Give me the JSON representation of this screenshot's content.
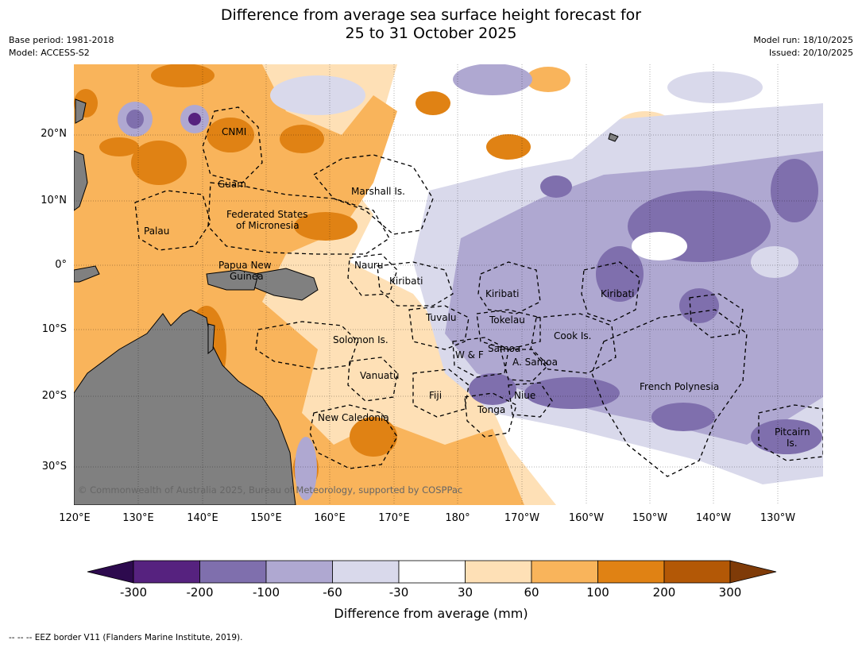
{
  "header": {
    "title_line1": "Difference from average sea surface height forecast for",
    "title_line2": "25 to 31 October 2025",
    "base_period": "Base period: 1981-2018",
    "model": "Model: ACCESS-S2",
    "model_run": "Model run: 18/10/2025",
    "issued": "Issued: 20/10/2025"
  },
  "map": {
    "extent": {
      "lon_min": 120,
      "lon_max": 237,
      "lat_min": -35,
      "lat_max": 30
    },
    "lat_ticks": [
      "20°N",
      "10°N",
      "0°",
      "10°S",
      "20°S",
      "30°S"
    ],
    "lon_ticks": [
      "120°E",
      "130°E",
      "140°E",
      "150°E",
      "160°E",
      "170°E",
      "180°",
      "170°W",
      "160°W",
      "150°W",
      "140°W",
      "130°W"
    ],
    "places": [
      "CNMI",
      "Guam",
      "Marshall Is.",
      "Federated States",
      "of Micronesia",
      "Palau",
      "Papua New",
      "Guinea",
      "Nauru",
      "Kiribati",
      "Kiribati",
      "Kiribati",
      "Tuvalu",
      "Tokelau",
      "Cook Is.",
      "Solomon Is.",
      "Samoa",
      "W & F",
      "A. Samoa",
      "Vanuatu",
      "Fiji",
      "Niue",
      "French Polynesia",
      "Tonga",
      "New Caledonia",
      "Pitcairn",
      "Is."
    ],
    "land_color": "#808080",
    "copyright": "© Commonwealth of Australia 2025, Bureau of Meteorology, supported by COSPPac"
  },
  "colorbar": {
    "labels": [
      "-300",
      "-200",
      "-100",
      "-60",
      "-30",
      "30",
      "60",
      "100",
      "200",
      "300"
    ],
    "colors": [
      "#2d0a4e",
      "#56227f",
      "#7f6fad",
      "#afa8d1",
      "#d9d9eb",
      "#ffffff",
      "#fee0b6",
      "#f9b45b",
      "#e08214",
      "#b35806",
      "#7f3b08"
    ],
    "title": "Difference from average (mm)"
  },
  "footnote": "--  --  -- EEZ border V11 (Flanders Marine Institute, 2019)."
}
